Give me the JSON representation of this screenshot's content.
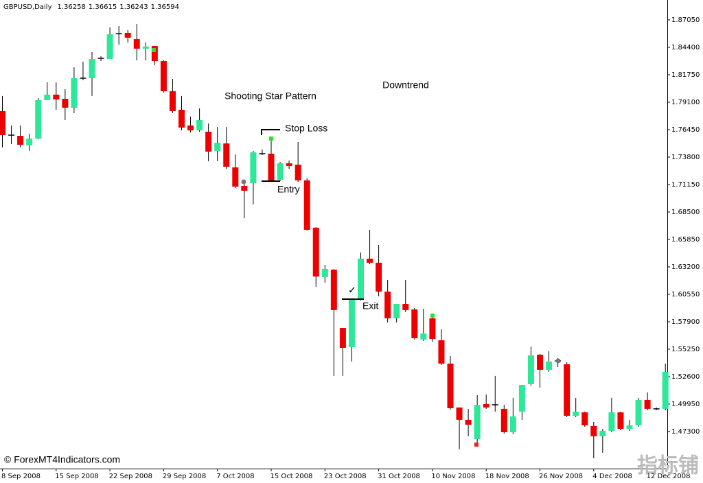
{
  "chart_data": {
    "type": "candlestick",
    "symbol": "GBPUSD,Daily",
    "quote": [
      1.36258,
      1.36615,
      1.36243,
      1.36594
    ],
    "annotations": [
      "Shooting Star Pattern",
      "Downtrend",
      "Stop Loss",
      "Entry",
      "Exit",
      "✓"
    ],
    "source": "© ForexMT4Indicators.com",
    "watermark": "指标铺",
    "up_color": "#2ee89a",
    "down_color": "#ee0000",
    "doji_color": "#000000",
    "ylim": [
      1.4372,
      1.8897
    ],
    "yticks": [
      {
        "value": 1.8705,
        "label": "1.87050"
      },
      {
        "value": 1.844,
        "label": "1.84400"
      },
      {
        "value": 1.8175,
        "label": "1.81750"
      },
      {
        "value": 1.791,
        "label": "1.79100"
      },
      {
        "value": 1.7645,
        "label": "1.76450"
      },
      {
        "value": 1.738,
        "label": "1.73800"
      },
      {
        "value": 1.7115,
        "label": "1.71150"
      },
      {
        "value": 1.685,
        "label": "1.68500"
      },
      {
        "value": 1.6585,
        "label": "1.65850"
      },
      {
        "value": 1.632,
        "label": "1.63200"
      },
      {
        "value": 1.6055,
        "label": "1.60550"
      },
      {
        "value": 1.579,
        "label": "1.57900"
      },
      {
        "value": 1.5525,
        "label": "1.55250"
      },
      {
        "value": 1.526,
        "label": "1.52600"
      },
      {
        "value": 1.4995,
        "label": "1.49950"
      },
      {
        "value": 1.473,
        "label": "1.47300"
      }
    ],
    "categories": [
      "8 Sep 2008",
      null,
      null,
      null,
      null,
      null,
      "15 Sep 2008",
      null,
      null,
      null,
      null,
      null,
      "22 Sep 2008",
      null,
      null,
      null,
      null,
      null,
      "29 Sep 2008",
      null,
      null,
      null,
      null,
      null,
      "7 Oct 2008",
      null,
      null,
      null,
      null,
      null,
      "15 Oct 2008",
      null,
      null,
      null,
      null,
      null,
      "23 Oct 2008",
      null,
      null,
      null,
      null,
      null,
      "31 Oct 2008",
      null,
      null,
      null,
      null,
      null,
      "10 Nov 2008",
      null,
      null,
      null,
      null,
      null,
      "18 Nov 2008",
      null,
      null,
      null,
      null,
      null,
      "26 Nov 2008",
      null,
      null,
      null,
      null,
      null,
      "4 Dec 2008",
      null,
      null,
      null,
      null,
      null,
      "12 Dec 2008",
      null,
      null
    ],
    "open": [
      1.7824,
      1.7592,
      1.7585,
      1.7493,
      1.7559,
      1.793,
      1.7983,
      1.7943,
      1.7857,
      1.8142,
      1.8142,
      1.8334,
      1.8327,
      1.8572,
      1.8579,
      1.8519,
      1.8427,
      1.8453,
      1.8307,
      1.8016,
      1.7837,
      1.7685,
      1.7638,
      1.7625,
      1.744,
      1.7512,
      1.7281,
      1.7102,
      1.7128,
      1.7413,
      1.7413,
      1.7161,
      1.732,
      1.7307,
      1.7155,
      1.6698,
      1.6221,
      1.6293,
      1.573,
      1.5545,
      1.6002,
      1.6399,
      1.636,
      1.6081,
      1.5823,
      1.5962,
      1.5909,
      1.5618,
      1.5823,
      1.5611,
      1.5386,
      1.4962,
      1.4843,
      1.4657,
      1.4995,
      1.4988,
      1.4949,
      1.4723,
      1.4922,
      1.5187,
      1.5472,
      1.5326,
      1.5412,
      1.5379,
      1.4882,
      1.4915,
      1.4783,
      1.4684,
      1.4737,
      1.4915,
      1.4756,
      1.479,
      1.5035,
      1.4949,
      1.4949
    ],
    "high": [
      1.797,
      1.7685,
      1.7685,
      1.7605,
      1.795,
      1.8102,
      1.8102,
      1.8036,
      1.8248,
      1.8301,
      1.8394,
      1.8354,
      1.8632,
      1.8645,
      1.8606,
      1.8665,
      1.8486,
      1.8453,
      1.8314,
      1.8135,
      1.797,
      1.7771,
      1.785,
      1.7705,
      1.7671,
      1.7671,
      1.7406,
      1.7141,
      1.744,
      1.7453,
      1.7539,
      1.7334,
      1.7347,
      1.7526,
      1.7175,
      1.6704,
      1.634,
      1.63,
      1.573,
      1.6002,
      1.6459,
      1.6678,
      1.6532,
      1.6194,
      1.5962,
      1.6194,
      1.5922,
      1.5916,
      1.5863,
      1.5717,
      1.5459,
      1.4962,
      1.4949,
      1.5081,
      1.5088,
      1.5267,
      1.4988,
      1.5055,
      1.518,
      1.5551,
      1.5479,
      1.5505,
      1.5439,
      1.5399,
      1.5055,
      1.4922,
      1.4823,
      1.4756,
      1.5055,
      1.4922,
      1.4843,
      1.5055,
      1.5108,
      1.4962,
      1.5386
    ],
    "low": [
      1.7473,
      1.7506,
      1.7473,
      1.744,
      1.7552,
      1.793,
      1.7837,
      1.7738,
      1.7804,
      1.8122,
      1.797,
      1.8307,
      1.8327,
      1.8466,
      1.8486,
      1.8314,
      1.8314,
      1.8268,
      1.8003,
      1.7804,
      1.7638,
      1.7618,
      1.7625,
      1.734,
      1.734,
      1.7267,
      1.7082,
      1.679,
      1.6923,
      1.74,
      1.7141,
      1.7148,
      1.7267,
      1.7141,
      1.6671,
      1.6128,
      1.6168,
      1.5267,
      1.5267,
      1.5406,
      1.5995,
      1.6346,
      1.6035,
      1.5783,
      1.5783,
      1.5883,
      1.5618,
      1.5604,
      1.5598,
      1.5373,
      1.4942,
      1.4558,
      1.4684,
      1.4624,
      1.4949,
      1.4922,
      1.471,
      1.4703,
      1.4843,
      1.5174,
      1.5154,
      1.5306,
      1.5353,
      1.4869,
      1.4869,
      1.4776,
      1.4472,
      1.4525,
      1.4723,
      1.4743,
      1.4737,
      1.4776,
      1.4935,
      1.4935,
      1.4935
    ],
    "close": [
      1.7592,
      1.7592,
      1.7499,
      1.7559,
      1.793,
      1.7983,
      1.7936,
      1.7857,
      1.8142,
      1.8142,
      1.8327,
      1.8334,
      1.8566,
      1.8572,
      1.8533,
      1.8427,
      1.8447,
      1.8307,
      1.8016,
      1.7824,
      1.7665,
      1.7638,
      1.7738,
      1.7433,
      1.7519,
      1.7287,
      1.7095,
      1.7055,
      1.7426,
      1.7413,
      1.7155,
      1.732,
      1.7294,
      1.7155,
      1.6678,
      1.6227,
      1.63,
      1.5903,
      1.5538,
      1.6002,
      1.6399,
      1.636,
      1.6081,
      1.5823,
      1.5962,
      1.5903,
      1.5631,
      1.5677,
      1.5624,
      1.5386,
      1.4955,
      1.4843,
      1.4796,
      1.4988,
      1.4962,
      1.4988,
      1.4723,
      1.4876,
      1.518,
      1.5465,
      1.5326,
      1.5406,
      1.5412,
      1.4882,
      1.4922,
      1.479,
      1.4684,
      1.4737,
      1.4915,
      1.4756,
      1.479,
      1.5035,
      1.4949,
      1.4949,
      1.5306
    ]
  }
}
